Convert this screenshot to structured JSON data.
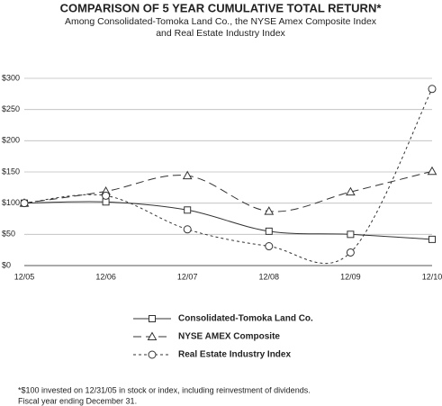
{
  "chart_data": {
    "type": "line",
    "title": "COMPARISON OF 5 YEAR CUMULATIVE TOTAL RETURN*",
    "subtitle": [
      "Among Consolidated-Tomoka Land Co., the NYSE Amex Composite Index",
      "and Real Estate Industry Index"
    ],
    "categories": [
      "12/05",
      "12/06",
      "12/07",
      "12/08",
      "12/09",
      "12/10"
    ],
    "series": [
      {
        "name": "Consolidated-Tomoka Land Co.",
        "color": "#333333",
        "linestyle": "solid",
        "marker": "square",
        "values": [
          100,
          102,
          89,
          55,
          50,
          42
        ]
      },
      {
        "name": "NYSE AMEX Composite",
        "color": "#333333",
        "linestyle": "dashed",
        "marker": "triangle",
        "values": [
          100,
          119,
          144,
          87,
          118,
          151
        ]
      },
      {
        "name": "Real Estate Industry Index",
        "color": "#333333",
        "linestyle": "dotted",
        "marker": "circle",
        "values": [
          100,
          112,
          58,
          31,
          21,
          283
        ]
      }
    ],
    "ylim": [
      0,
      300
    ],
    "yticks": [
      {
        "value": 0,
        "label": "$0"
      },
      {
        "value": 50,
        "label": "$50"
      },
      {
        "value": 100,
        "label": "$100"
      },
      {
        "value": 150,
        "label": "$150"
      },
      {
        "value": 200,
        "label": "$200"
      },
      {
        "value": 250,
        "label": "$250"
      },
      {
        "value": 300,
        "label": "$300"
      }
    ],
    "grid": true,
    "footnote": [
      "*$100 invested on 12/31/05 in stock or index, including reinvestment of dividends.",
      "Fiscal year ending December 31."
    ]
  }
}
